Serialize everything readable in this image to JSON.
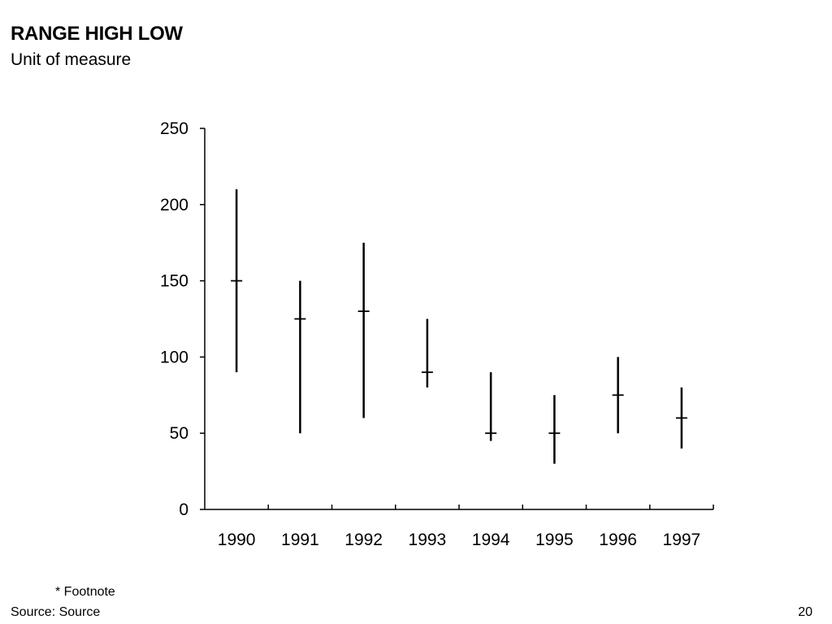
{
  "slide": {
    "title": "RANGE HIGH LOW",
    "subtitle": "Unit of measure",
    "footnote": "* Footnote",
    "source": "Source: Source",
    "page_number": "20"
  },
  "chart_data": {
    "type": "range_high_low",
    "title": "",
    "xlabel": "",
    "ylabel": "",
    "ylim": [
      0,
      250
    ],
    "yticks": [
      0,
      50,
      100,
      150,
      200,
      250
    ],
    "categories": [
      "1990",
      "1991",
      "1992",
      "1993",
      "1994",
      "1995",
      "1996",
      "1997"
    ],
    "series": [
      {
        "high": [
          210,
          150,
          175,
          125,
          90,
          75,
          100,
          80
        ],
        "low": [
          90,
          50,
          60,
          80,
          45,
          30,
          50,
          40
        ],
        "mid": [
          150,
          125,
          130,
          90,
          50,
          50,
          75,
          60
        ]
      }
    ],
    "grid": false,
    "legend": "none",
    "line_color": "#000000"
  }
}
